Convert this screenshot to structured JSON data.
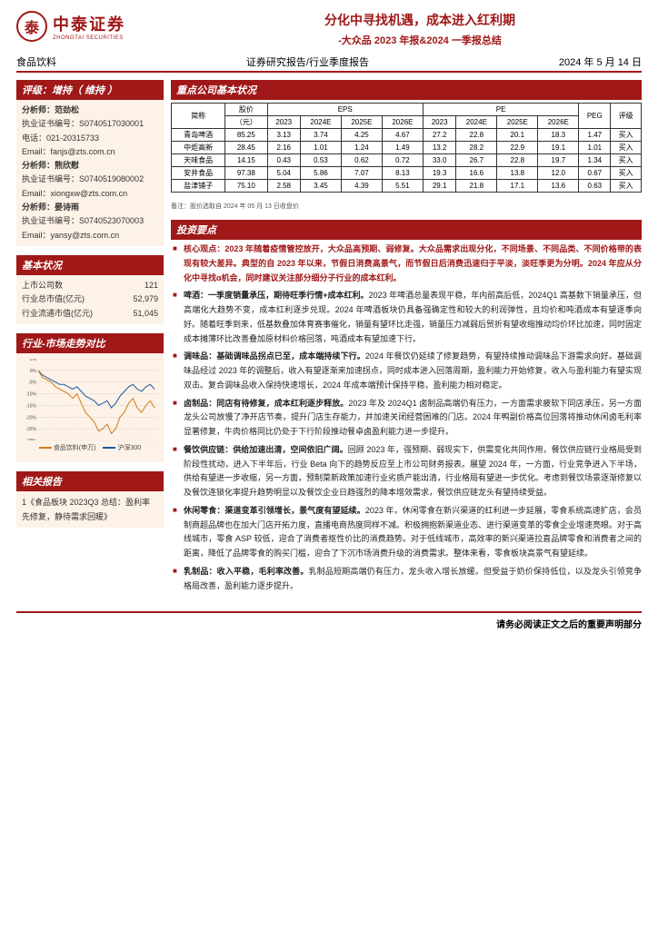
{
  "brand": {
    "cn": "中泰证券",
    "en": "ZHONGTAI SECURITIES",
    "glyph": "泰"
  },
  "title": {
    "main": "分化中寻找机遇，成本进入红利期",
    "sub": "-大众品 2023 年报&2024 一季报总结"
  },
  "meta": {
    "sector": "食品饮料",
    "doc_type": "证券研究报告/行业季度报告",
    "date": "2024 年 5 月 14 日"
  },
  "rating": {
    "head": "评级：增持（ 维持 ）",
    "lines": [
      "分析师：范劲松",
      "执业证书编号：S0740517030001",
      "电话：021-20315733",
      "Email：fanjs@zts.com.cn",
      "分析师：熊欣慰",
      "执业证书编号：S0740519080002",
      "Email：xiongxw@zts.com.cn",
      "分析师：晏诗雨",
      "执业证书编号：S0740523070003",
      "Email：yansy@zts.com.cn"
    ]
  },
  "basic": {
    "head": "基本状况",
    "rows": [
      {
        "k": "上市公司数",
        "v": "121"
      },
      {
        "k": "行业总市值(亿元)",
        "v": "52,979"
      },
      {
        "k": "行业流通市值(亿元)",
        "v": "51,045"
      }
    ]
  },
  "market": {
    "head": "行业-市场走势对比",
    "legend": {
      "a": "食品饮料(申万)",
      "b": "沪深300"
    },
    "colors": {
      "a": "#d07a1a",
      "b": "#1a5aa0",
      "axis": "#888",
      "bg": "#fdf2e7"
    },
    "y_ticks": [
      "5%",
      "0%",
      "-5%",
      "-10%",
      "-15%",
      "-20%",
      "-25%",
      "-30%"
    ],
    "series_a": [
      0,
      -3,
      -4,
      -5,
      -7,
      -8,
      -9,
      -10,
      -12,
      -10,
      -14,
      -18,
      -20,
      -22,
      -26,
      -25,
      -23,
      -27,
      -25,
      -20,
      -18,
      -14,
      -12,
      -16,
      -18,
      -15,
      -13,
      -16
    ],
    "series_b": [
      0,
      -2,
      -3,
      -4,
      -5,
      -6,
      -6,
      -7,
      -8,
      -7,
      -9,
      -11,
      -12,
      -13,
      -15,
      -14,
      -13,
      -16,
      -14,
      -11,
      -9,
      -7,
      -6,
      -8,
      -9,
      -7,
      -6,
      -8
    ]
  },
  "related": {
    "head": "相关报告",
    "items": [
      "1《食品板块 2023Q3 总结：盈利率先修复，静待需求回暖》"
    ]
  },
  "table": {
    "head": "重点公司基本状况",
    "cols_top": {
      "name": "简称",
      "price": "股价",
      "price_sub": "（元）",
      "eps": "EPS",
      "pe": "PE",
      "peg": "PEG",
      "rating": "评级"
    },
    "years_eps": [
      "2023",
      "2024E",
      "2025E",
      "2026E"
    ],
    "years_pe": [
      "2023",
      "2024E",
      "2025E",
      "2026E"
    ],
    "rows": [
      {
        "n": "青岛啤酒",
        "p": "85.25",
        "eps": [
          "3.13",
          "3.74",
          "4.25",
          "4.67"
        ],
        "pe": [
          "27.2",
          "22.8",
          "20.1",
          "18.3"
        ],
        "peg": "1.47",
        "r": "买入"
      },
      {
        "n": "中炬高新",
        "p": "28.45",
        "eps": [
          "2.16",
          "1.01",
          "1.24",
          "1.49"
        ],
        "pe": [
          "13.2",
          "28.2",
          "22.9",
          "19.1"
        ],
        "peg": "1.01",
        "r": "买入"
      },
      {
        "n": "天味食品",
        "p": "14.15",
        "eps": [
          "0.43",
          "0.53",
          "0.62",
          "0.72"
        ],
        "pe": [
          "33.0",
          "26.7",
          "22.8",
          "19.7"
        ],
        "peg": "1.34",
        "r": "买入"
      },
      {
        "n": "安井食品",
        "p": "97.38",
        "eps": [
          "5.04",
          "5.86",
          "7.07",
          "8.13"
        ],
        "pe": [
          "19.3",
          "16.6",
          "13.8",
          "12.0"
        ],
        "peg": "0.67",
        "r": "买入"
      },
      {
        "n": "盐津铺子",
        "p": "75.10",
        "eps": [
          "2.58",
          "3.45",
          "4.39",
          "5.51"
        ],
        "pe": [
          "29.1",
          "21.8",
          "17.1",
          "13.6"
        ],
        "peg": "0.63",
        "r": "买入"
      }
    ],
    "note": "备注：股价选取自 2024 年 05 月 13 日收盘价"
  },
  "invest": {
    "head": "投资要点",
    "bullets": [
      {
        "title": "核心观点：2023 年随着疫情管控放开，大众品高预期、弱修复。大众品需求出现分化，不同场景、不同品类、不同价格带的表现有较大差异。典型的自 2023 年以来，节假日消费高景气，而节假日后消费迅速归于平淡，淡旺季更为分明。2024 年应从分化中寻找α机会，同时建议关注部分细分子行业的成本红利。",
        "body": "",
        "red": true
      },
      {
        "title": "啤酒：一季度销量承压，期待旺季行情+成本红利。",
        "body": "2023 年啤酒总量表现平稳，年内前高后低，2024Q1 高基数下销量承压，但高端化大趋势不变，成本红利逐步兑现。2024 年啤酒板块仍具备强确定性和较大的利润弹性，且均价和吨酒成本有望逐季向好。随着旺季到来，低基数叠加体育赛事催化，销量有望环比走强，销量压力减弱后贸折有望收缩推动均价环比加速，同时固定成本摊薄环比改善叠加原材料价格回落，吨酒成本有望加速下行。"
      },
      {
        "title": "调味品：基础调味品拐点已至，成本端持续下行。",
        "body": "2024 年餐饮仍延续了修复趋势，有望持续推动调味品下游需求向好。基础调味品经过 2023 年的调整后，收入有望逐渐来加速拐点，同时成本进入回落周期，盈利能力开始修复，收入与盈利能力有望实现双击。复合调味品收入保持快速增长，2024 年成本端预计保持平稳，盈利能力相对稳定。"
      },
      {
        "title": "卤制品：同店有待修复，成本红利逐步释放。",
        "body": "2023 年及 2024Q1 卤制品高端仍有压力，一方面需求疲软下同店承压，另一方面龙头公司放慢了净开店节奏，提升门店生存能力，并加速关闭经营困难的门店。2024 年鸭副价格高位回落将推动休闲卤毛利率显著修复，牛肉价格同比仍处于下行阶段推动餐卓卤盈利能力进一步提升。"
      },
      {
        "title": "餐饮供应链：供给加速出清，空间依旧广阔。",
        "body": "回顾 2023 年，强预期、弱现实下，供需变化共同作用，餐饮供应链行业格局受到阶段性扰动，进入下半年后，行业 Beta 向下的趋势反应至上市公司财务报表。展望 2024 年，一方面，行业竞争进入下半场，供给有望进一步收缩，另一方面，预制菜新政策加速行业劣质产能出清，行业格局有望进一步优化。考虑到餐饮场景逐渐修复以及餐饮连锁化率提升趋势明显以及餐饮企业日趋强烈的降本增效需求，餐饮供应链龙头有望持续受益。"
      },
      {
        "title": "休闲零食：渠道变革引领增长，景气度有望延续。",
        "body": "2023 年，休闲零食在新兴渠道的红利进一步延展，零食系统高速扩店，会员制商超品牌也在加大门店开拓力度，直播电商热度同样不减。积极拥抱新渠道业态、进行渠道变革的零食企业增速亮眼。对于高线城市，零食 ASP 较低，迎合了消费者抠性价比的消费趋势。对于低线城市，高效率的新兴渠道拉直品牌零食和消费者之间的距离，降低了品牌零食的购买门槛，迎合了下沉市场消费升级的消费需求。整体来看，零食板块高景气有望延续。"
      },
      {
        "title": "乳制品：收入平稳，毛利率改善。",
        "body": "乳制品短期高端仍有压力，龙头收入增长放缓。但受益于奶价保持低位，以及龙头引领竞争格局改善，盈利能力逐步提升。"
      }
    ]
  },
  "footer": "请务必阅读正文之后的重要声明部分"
}
